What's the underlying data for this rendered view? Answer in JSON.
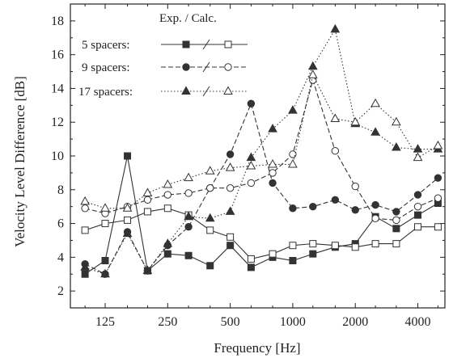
{
  "chart_data": {
    "type": "line",
    "xlabel": "Frequency [Hz]",
    "ylabel": "Velocity Level Difference [dB]",
    "x_scale": "log",
    "xlim": [
      85,
      5400
    ],
    "ylim": [
      1,
      19
    ],
    "x_ticks": [
      125,
      250,
      500,
      1000,
      2000,
      4000
    ],
    "y_ticks": [
      2,
      4,
      6,
      8,
      10,
      12,
      14,
      16,
      18
    ],
    "legend_header": "Exp.  / Calc.",
    "legend_position": "top-left",
    "grid": false,
    "x": [
      100,
      125,
      160,
      200,
      250,
      315,
      400,
      500,
      630,
      800,
      1000,
      1250,
      1600,
      2000,
      2500,
      3150,
      4000,
      5000
    ],
    "series": [
      {
        "name": "5 spacers:",
        "kind": "exp",
        "group": 0,
        "marker": "square",
        "filled": true,
        "dash": "solid",
        "values": [
          3.0,
          3.8,
          10.0,
          3.2,
          4.2,
          4.1,
          3.5,
          4.7,
          3.4,
          4.0,
          3.8,
          4.2,
          4.6,
          4.8,
          6.4,
          5.7,
          6.5,
          7.2
        ]
      },
      {
        "name": "5 spacers:",
        "kind": "calc",
        "group": 0,
        "marker": "square",
        "filled": false,
        "dash": "solid",
        "values": [
          5.6,
          6.0,
          6.2,
          6.7,
          6.9,
          6.5,
          5.6,
          5.2,
          3.9,
          4.2,
          4.7,
          4.8,
          4.7,
          4.6,
          4.8,
          4.8,
          5.8,
          5.8
        ]
      },
      {
        "name": "9 spacers:",
        "kind": "exp",
        "group": 1,
        "marker": "circle",
        "filled": true,
        "dash": "dash",
        "values": [
          3.6,
          3.0,
          5.5,
          3.2,
          4.7,
          5.8,
          8.1,
          10.1,
          13.1,
          8.4,
          6.9,
          7.0,
          7.4,
          6.8,
          7.1,
          6.7,
          7.7,
          8.7
        ]
      },
      {
        "name": "9 spacers:",
        "kind": "calc",
        "group": 1,
        "marker": "circle",
        "filled": false,
        "dash": "dash",
        "values": [
          6.9,
          6.6,
          7.0,
          7.4,
          7.7,
          7.8,
          8.1,
          8.1,
          8.4,
          9.0,
          10.1,
          14.5,
          10.3,
          8.2,
          6.3,
          6.2,
          7.0,
          7.5
        ]
      },
      {
        "name": "17 spacers:",
        "kind": "exp",
        "group": 2,
        "marker": "triangle",
        "filled": true,
        "dash": "dot",
        "values": [
          3.4,
          3.0,
          5.4,
          3.2,
          4.8,
          6.4,
          6.3,
          6.7,
          9.9,
          11.6,
          12.7,
          15.3,
          17.5,
          11.9,
          11.4,
          10.5,
          10.4,
          10.4
        ]
      },
      {
        "name": "17 spacers:",
        "kind": "calc",
        "group": 2,
        "marker": "triangle",
        "filled": false,
        "dash": "dot",
        "values": [
          7.3,
          6.9,
          6.9,
          7.8,
          8.3,
          8.7,
          9.1,
          9.3,
          9.4,
          9.5,
          9.5,
          14.8,
          12.2,
          12.0,
          13.1,
          12.0,
          9.9,
          10.6
        ]
      }
    ]
  }
}
